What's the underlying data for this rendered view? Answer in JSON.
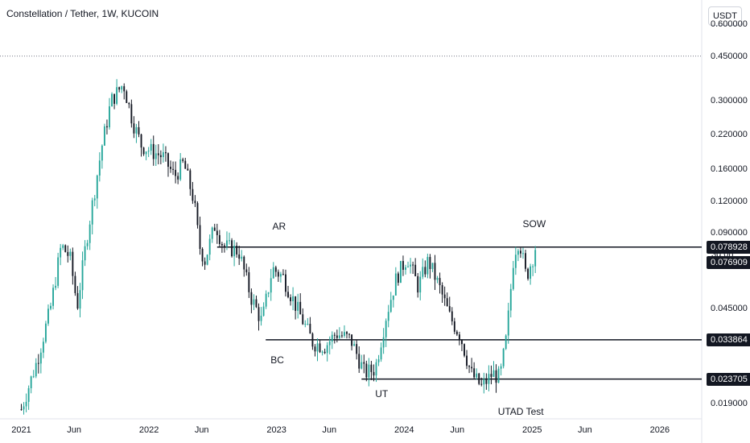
{
  "header": {
    "title": "Constellation / Tether, 1W, KUCOIN",
    "currency": "USDT"
  },
  "price_tags": {
    "resistance": "0.078928",
    "countdown": "3d 0h",
    "last": "0.076909",
    "support_bc": "0.033864",
    "support_ut": "0.023705"
  },
  "colors": {
    "up": "#26a69a",
    "down": "#131722",
    "line": "#131722",
    "axis_text": "#131722"
  },
  "chart_data": {
    "type": "candlestick",
    "title": "Constellation / Tether, 1W, KUCOIN",
    "y_scale": "log",
    "ylim": [
      0.0165,
      0.75
    ],
    "y_ticks": [
      "0.600000",
      "0.450000",
      "0.300000",
      "0.220000",
      "0.160000",
      "0.120000",
      "0.090000",
      "0.045000",
      "0.019000"
    ],
    "x_ticks": [
      "2021",
      "Jun",
      "2022",
      "Jun",
      "2023",
      "Jun",
      "2024",
      "Jun",
      "2025",
      "Jun",
      "2026"
    ],
    "x_tick_dates": [
      "2021-01-01",
      "2021-06-01",
      "2022-01-01",
      "2022-06-01",
      "2023-01-01",
      "2023-06-01",
      "2024-01-01",
      "2024-06-01",
      "2025-01-01",
      "2025-06-01",
      "2026-01-01"
    ],
    "x_range": [
      "2020-11-01",
      "2026-05-01"
    ],
    "reference_levels": [
      {
        "label": "0.450000",
        "value": 0.45,
        "style": "dotted",
        "from": "2020-11-01",
        "to": "2026-05-01"
      },
      {
        "label": "0.078928",
        "value": 0.0789,
        "style": "solid",
        "from": "2022-07-15",
        "to": "2026-05-01"
      },
      {
        "label": "0.033864",
        "value": 0.0339,
        "style": "solid",
        "from": "2022-12-01",
        "to": "2026-05-01"
      },
      {
        "label": "0.023705",
        "value": 0.0237,
        "style": "solid",
        "from": "2023-09-01",
        "to": "2026-05-01"
      }
    ],
    "annotations": [
      {
        "text": "AR",
        "date": "2022-12-20",
        "price": 0.095
      },
      {
        "text": "BC",
        "date": "2022-12-15",
        "price": 0.028
      },
      {
        "text": "UT",
        "date": "2023-10-10",
        "price": 0.0205
      },
      {
        "text": "UTAD Test",
        "date": "2024-09-25",
        "price": 0.0175
      },
      {
        "text": "SOW",
        "date": "2024-12-05",
        "price": 0.097
      }
    ],
    "last_close": 0.0769,
    "path": [
      [
        "2021-01-01",
        0.018
      ],
      [
        "2021-02-15",
        0.028
      ],
      [
        "2021-03-25",
        0.045
      ],
      [
        "2021-04-25",
        0.08
      ],
      [
        "2021-05-20",
        0.072
      ],
      [
        "2021-06-10",
        0.046
      ],
      [
        "2021-07-05",
        0.082
      ],
      [
        "2021-08-05",
        0.15
      ],
      [
        "2021-08-20",
        0.2
      ],
      [
        "2021-09-15",
        0.3
      ],
      [
        "2021-10-20",
        0.35
      ],
      [
        "2021-11-15",
        0.25
      ],
      [
        "2021-12-10",
        0.2
      ],
      [
        "2022-01-05",
        0.19
      ],
      [
        "2022-02-10",
        0.18
      ],
      [
        "2022-03-15",
        0.15
      ],
      [
        "2022-04-10",
        0.17
      ],
      [
        "2022-05-10",
        0.12
      ],
      [
        "2022-05-25",
        0.08
      ],
      [
        "2022-06-10",
        0.07
      ],
      [
        "2022-07-10",
        0.098
      ],
      [
        "2022-08-01",
        0.08
      ],
      [
        "2022-09-15",
        0.076
      ],
      [
        "2022-10-20",
        0.05
      ],
      [
        "2022-11-20",
        0.04
      ],
      [
        "2022-12-20",
        0.065
      ],
      [
        "2023-01-20",
        0.06
      ],
      [
        "2023-03-01",
        0.045
      ],
      [
        "2023-04-15",
        0.033
      ],
      [
        "2023-05-20",
        0.032
      ],
      [
        "2023-06-20",
        0.036
      ],
      [
        "2023-08-01",
        0.034
      ],
      [
        "2023-09-10",
        0.025
      ],
      [
        "2023-10-10",
        0.026
      ],
      [
        "2023-11-10",
        0.042
      ],
      [
        "2023-12-10",
        0.06
      ],
      [
        "2024-01-10",
        0.072
      ],
      [
        "2024-02-10",
        0.055
      ],
      [
        "2024-03-10",
        0.07
      ],
      [
        "2024-04-10",
        0.055
      ],
      [
        "2024-05-10",
        0.042
      ],
      [
        "2024-06-10",
        0.035
      ],
      [
        "2024-07-10",
        0.025
      ],
      [
        "2024-08-10",
        0.022
      ],
      [
        "2024-09-10",
        0.025
      ],
      [
        "2024-10-01",
        0.024
      ],
      [
        "2024-10-20",
        0.035
      ],
      [
        "2024-11-10",
        0.075
      ],
      [
        "2024-11-25",
        0.085
      ],
      [
        "2024-12-15",
        0.06
      ],
      [
        "2025-01-10",
        0.0769
      ]
    ]
  }
}
